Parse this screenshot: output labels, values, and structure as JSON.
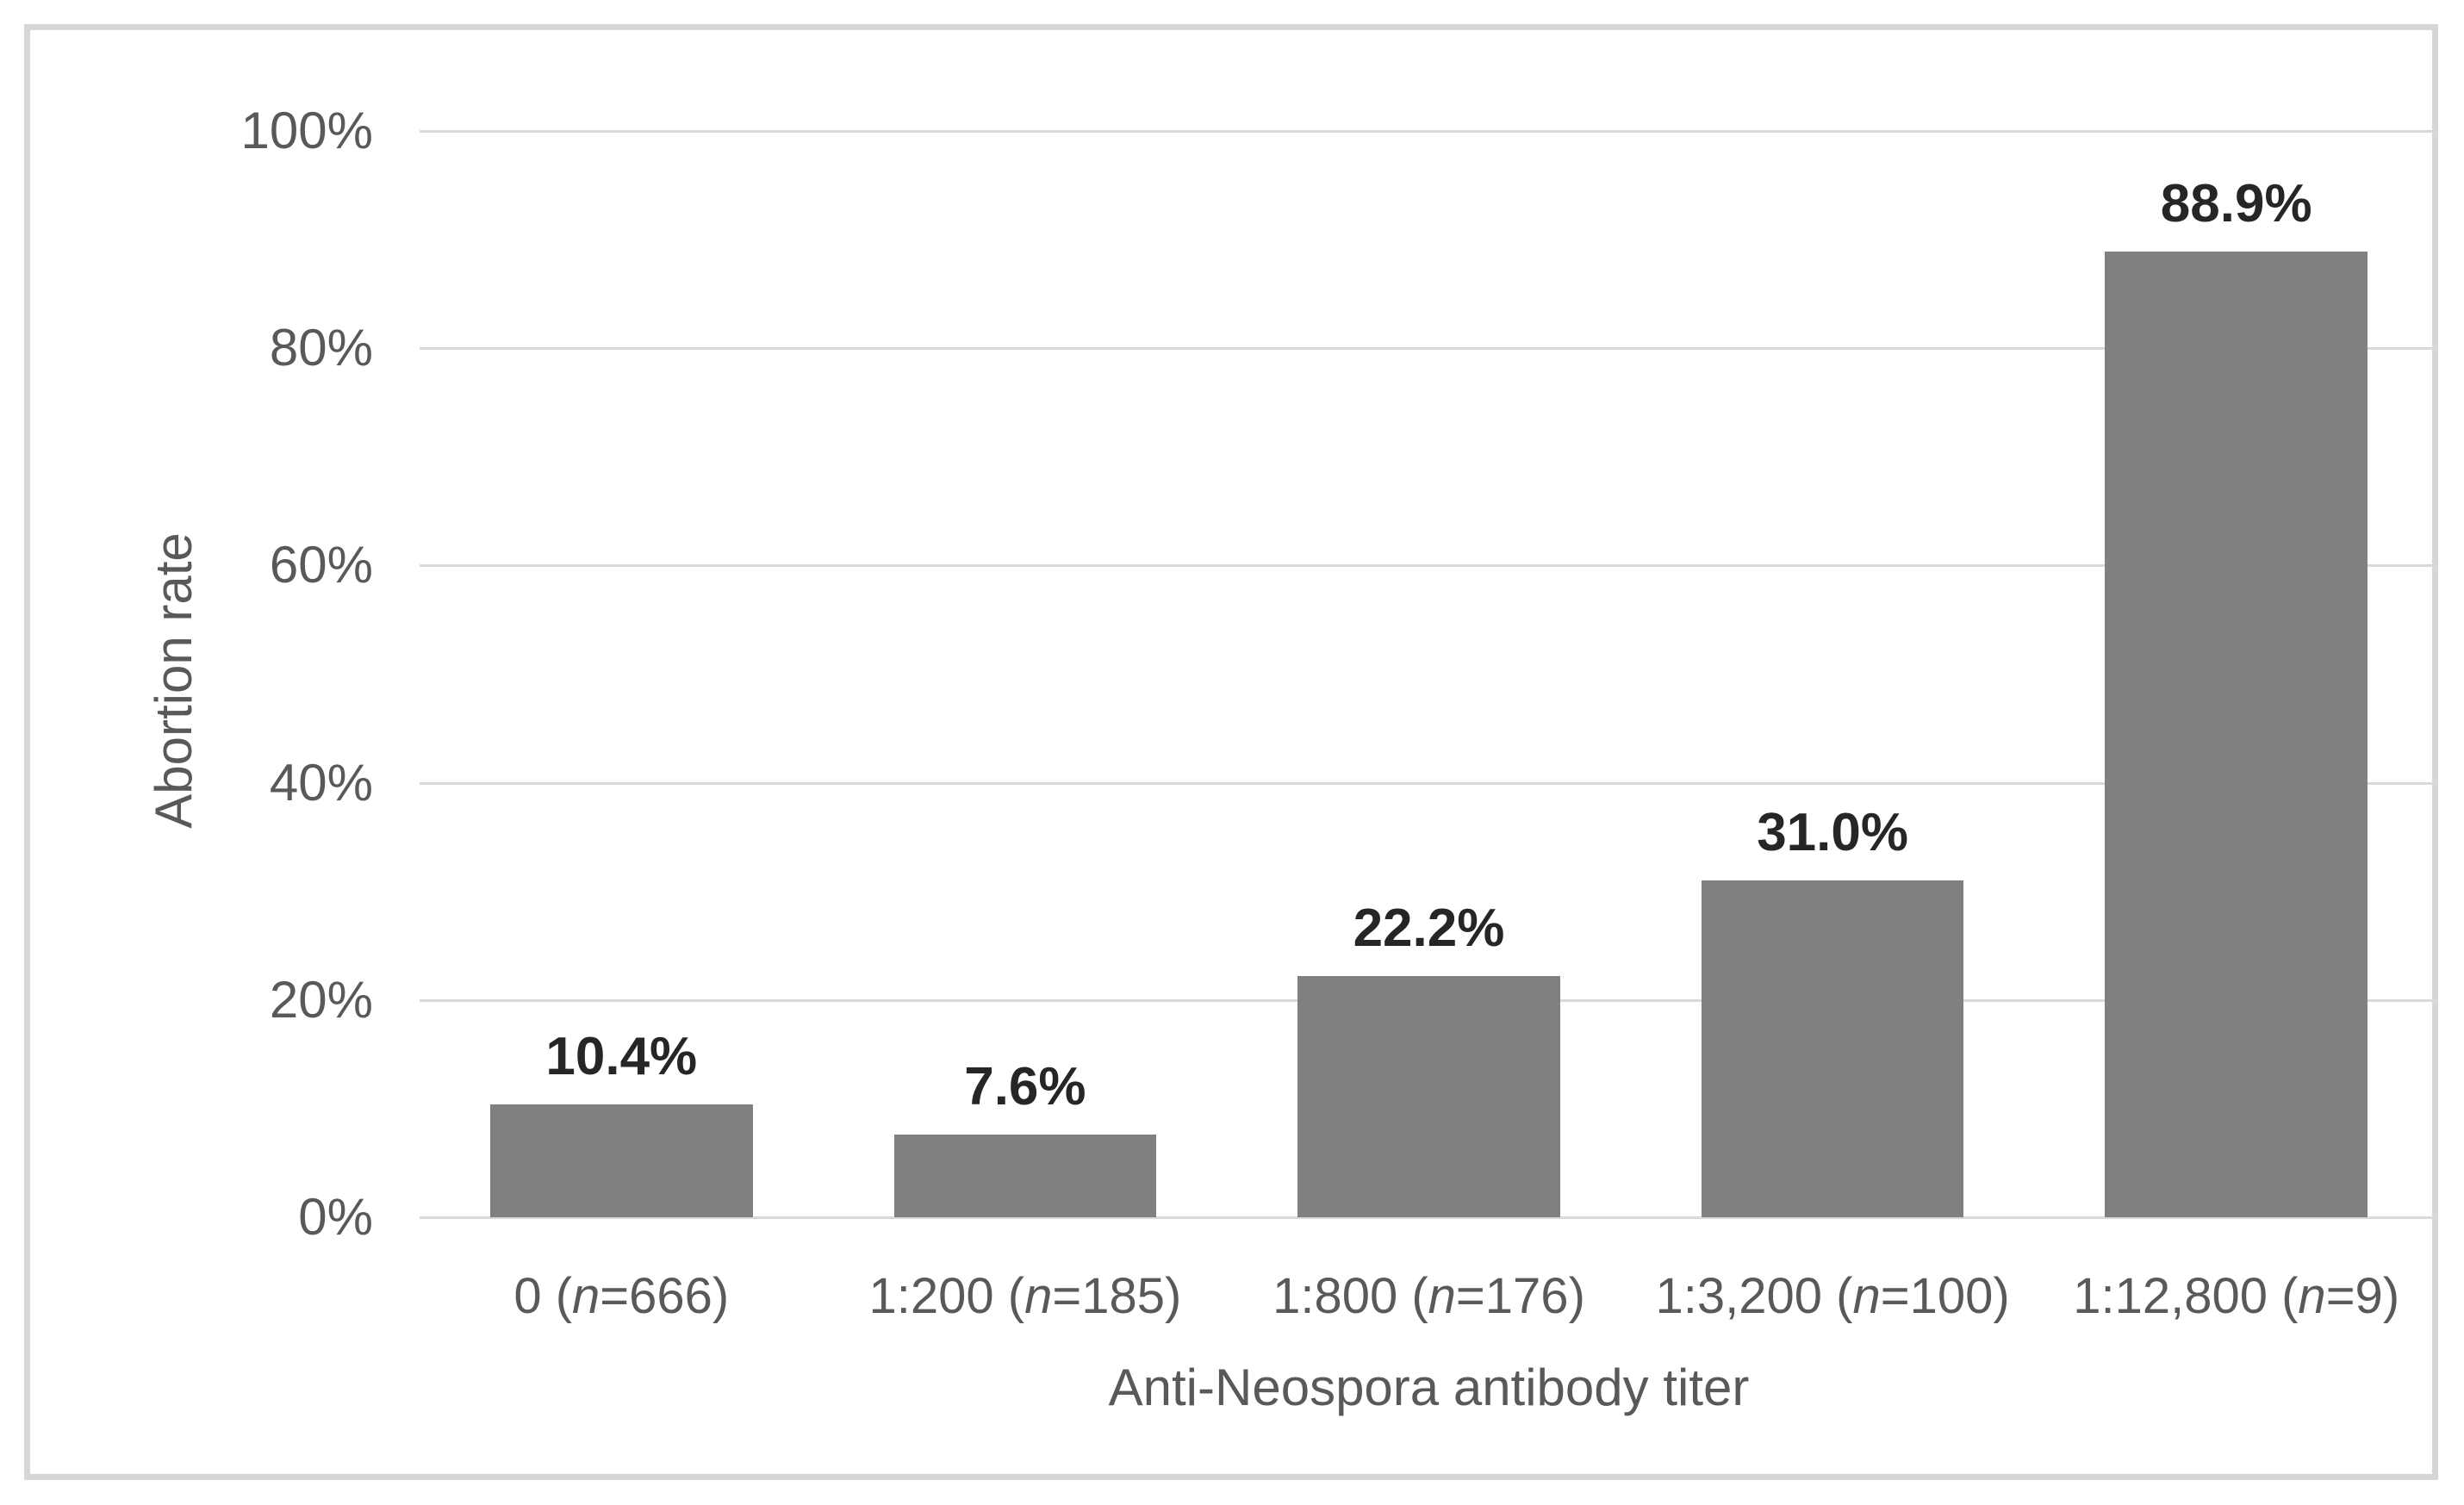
{
  "chart_data": {
    "type": "bar",
    "title": "",
    "y_axis": {
      "label": "Abortion rate",
      "min": 0,
      "max": 100,
      "tick_step": 20,
      "tick_labels": [
        "0%",
        "20%",
        "40%",
        "60%",
        "80%",
        "100%"
      ],
      "format": "percent"
    },
    "x_axis": {
      "label": "Anti-Neospora antibody titer"
    },
    "categories": [
      "0 (n=666)",
      "1:200 (n=185)",
      "1:800 (n=176)",
      "1:3,200 (n=100)",
      "1:12,800 (n=9)"
    ],
    "category_label_parts": [
      {
        "pre": "0 (",
        "var": "n",
        "post": "=666)"
      },
      {
        "pre": "1:200 (",
        "var": "n",
        "post": "=185)"
      },
      {
        "pre": "1:800 (",
        "var": "n",
        "post": "=176)"
      },
      {
        "pre": "1:3,200 (",
        "var": "n",
        "post": "=100)"
      },
      {
        "pre": "1:12,800 (",
        "var": "n",
        "post": "=9)"
      }
    ],
    "values": [
      10.4,
      7.6,
      22.2,
      31.0,
      88.9
    ],
    "value_labels": [
      "10.4%",
      "7.6%",
      "22.2%",
      "31.0%",
      "88.9%"
    ],
    "grid": true,
    "legend": "none",
    "colors": {
      "bar": "#808080",
      "gridline": "#d9d9d9",
      "axis_line": "#d9d9d9",
      "tick_text": "#595959",
      "axis_title_text": "#595959",
      "value_label_text": "#262626",
      "frame_border": "#d4d7d9",
      "background": "#ffffff"
    }
  }
}
